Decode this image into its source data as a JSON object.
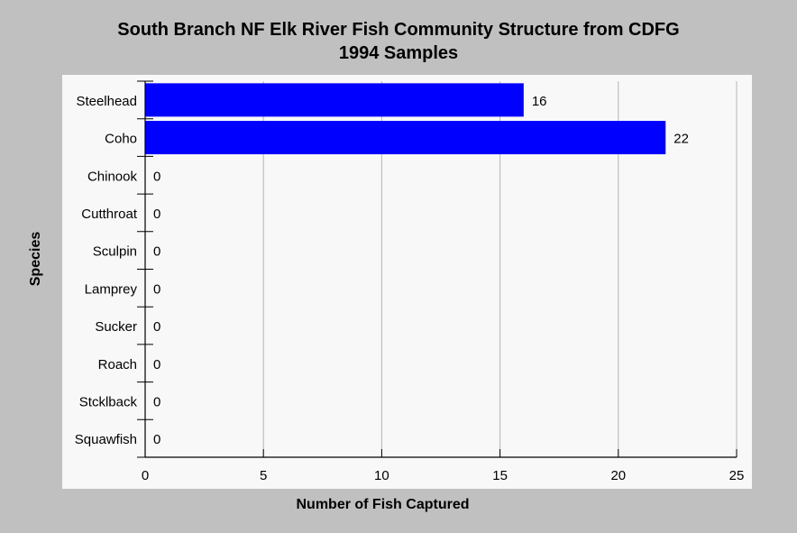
{
  "chart_data": {
    "type": "bar",
    "orientation": "horizontal",
    "title": [
      "South Branch NF Elk River Fish Community Structure from CDFG",
      "1994 Samples"
    ],
    "xlabel": "Number of Fish Captured",
    "ylabel": "Species",
    "categories": [
      "Steelhead",
      "Coho",
      "Chinook",
      "Cutthroat",
      "Sculpin",
      "Lamprey",
      "Sucker",
      "Roach",
      "Stcklback",
      "Squawfish"
    ],
    "values": [
      16,
      22,
      0,
      0,
      0,
      0,
      0,
      0,
      0,
      0
    ],
    "value_labels": [
      "16",
      "22",
      "0",
      "0",
      "0",
      "0",
      "0",
      "0",
      "0",
      "0"
    ],
    "xlim": [
      0,
      25
    ],
    "xticks": [
      0,
      5,
      10,
      15,
      20,
      25
    ],
    "xtick_labels": [
      "0",
      "5",
      "10",
      "15",
      "20",
      "25"
    ],
    "grid": "vertical",
    "legend": "none",
    "bar_color": "#0000ff",
    "plot_background": "#f8f8f8",
    "page_background": "#c0c0c0",
    "grid_color": "#b4b4b4"
  }
}
